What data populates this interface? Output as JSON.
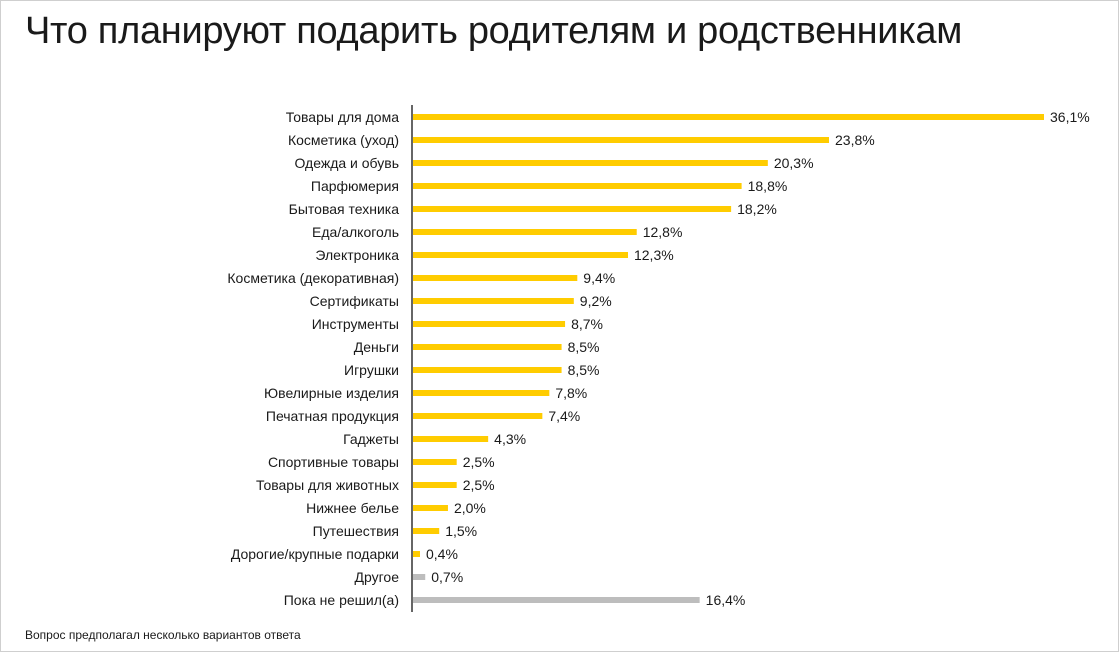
{
  "title": "Что планируют подарить родителям и родственникам",
  "footnote": "Вопрос предполагал несколько вариантов ответа",
  "colors": {
    "highlight": "#FFCC00",
    "neutral": "#BDBDBD",
    "axis": "#333333"
  },
  "chart_data": {
    "type": "bar",
    "orientation": "horizontal",
    "value_suffix": "%",
    "categories": [
      "Товары для дома",
      "Косметика (уход)",
      "Одежда и обувь",
      "Парфюмерия",
      "Бытовая техника",
      "Еда/алкоголь",
      "Электроника",
      "Косметика (декоративная)",
      "Сертификаты",
      "Инструменты",
      "Деньги",
      "Игрушки",
      "Ювелирные изделия",
      "Печатная продукция",
      "Гаджеты",
      "Спортивные товары",
      "Товары для животных",
      "Нижнее белье",
      "Путешествия",
      "Дорогие/крупные подарки",
      "Другое",
      "Пока не решил(а)"
    ],
    "values": [
      36.1,
      23.8,
      20.3,
      18.8,
      18.2,
      12.8,
      12.3,
      9.4,
      9.2,
      8.7,
      8.5,
      8.5,
      7.8,
      7.4,
      4.3,
      2.5,
      2.5,
      2.0,
      1.5,
      0.4,
      0.7,
      16.4
    ],
    "value_labels": [
      "36,1%",
      "23,8%",
      "20,3%",
      "18,8%",
      "18,2%",
      "12,8%",
      "12,3%",
      "9,4%",
      "9,2%",
      "8,7%",
      "8,5%",
      "8,5%",
      "7,8%",
      "7,4%",
      "4,3%",
      "2,5%",
      "2,5%",
      "2,0%",
      "1,5%",
      "0,4%",
      "0,7%",
      "16,4%"
    ],
    "bar_colors": [
      "#FFCC00",
      "#FFCC00",
      "#FFCC00",
      "#FFCC00",
      "#FFCC00",
      "#FFCC00",
      "#FFCC00",
      "#FFCC00",
      "#FFCC00",
      "#FFCC00",
      "#FFCC00",
      "#FFCC00",
      "#FFCC00",
      "#FFCC00",
      "#FFCC00",
      "#FFCC00",
      "#FFCC00",
      "#FFCC00",
      "#FFCC00",
      "#FFCC00",
      "#BDBDBD",
      "#BDBDBD"
    ],
    "xlim": [
      0,
      36.1
    ],
    "grid": false,
    "legend": "none"
  }
}
